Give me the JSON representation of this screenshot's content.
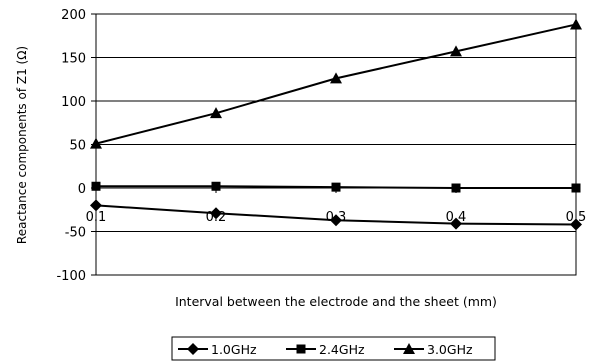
{
  "chart_data": {
    "type": "line",
    "xlabel": "Interval between the electrode and the sheet (mm)",
    "ylabel": "Reactance components of Z1 (Ω)",
    "x": [
      0.1,
      0.2,
      0.3,
      0.4,
      0.5
    ],
    "x_tick_labels": [
      "0.1",
      "0.2",
      "0.3",
      "0.4",
      "0.5"
    ],
    "ylim": [
      -100,
      200
    ],
    "y_ticks": [
      -100,
      -50,
      0,
      50,
      100,
      150,
      200
    ],
    "y_tick_labels": [
      "-100",
      "-50",
      "0",
      "50",
      "100",
      "150",
      "200"
    ],
    "grid": "horizontal",
    "legend_position": "bottom",
    "series": [
      {
        "name": "1.0GHz",
        "marker": "diamond",
        "values": [
          -20,
          -29,
          -37,
          -41,
          -42
        ]
      },
      {
        "name": "2.4GHz",
        "marker": "square",
        "values": [
          2,
          2,
          1,
          0,
          0
        ]
      },
      {
        "name": "3.0GHz",
        "marker": "triangle",
        "values": [
          51,
          86,
          126,
          157,
          188
        ]
      }
    ],
    "colors": {
      "line": "#000000",
      "grid": "#000000",
      "background": "#ffffff"
    }
  }
}
